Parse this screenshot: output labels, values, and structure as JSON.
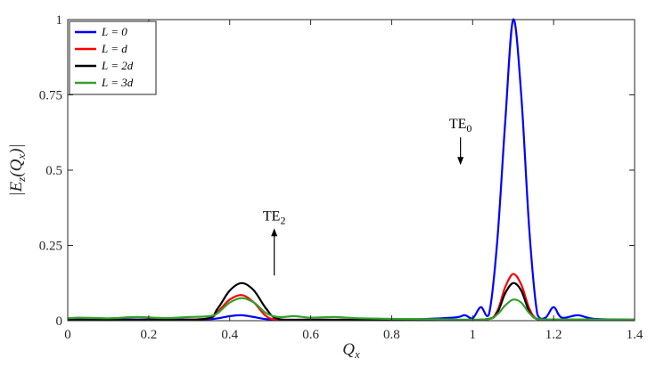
{
  "chart_data": {
    "type": "line",
    "xlabel": "Q_x",
    "ylabel": "|E_z(Q_x)|",
    "xlim": [
      0,
      1.4
    ],
    "ylim": [
      0,
      1
    ],
    "xticks": [
      "0",
      "0.2",
      "0.4",
      "0.6",
      "0.8",
      "1",
      "1.2",
      "1.4"
    ],
    "yticks": [
      "0",
      "0.25",
      "0.5",
      "0.75",
      "1"
    ],
    "grid": false,
    "legend_position": "top-left",
    "series": [
      {
        "name": "L = 0",
        "color": "#0000ff",
        "x": [
          0,
          0.1,
          0.2,
          0.3,
          0.36,
          0.4,
          0.43,
          0.46,
          0.5,
          0.6,
          0.8,
          0.95,
          0.98,
          1.0,
          1.02,
          1.04,
          1.06,
          1.08,
          1.1,
          1.12,
          1.14,
          1.16,
          1.18,
          1.2,
          1.22,
          1.26,
          1.3,
          1.4
        ],
        "values": [
          0.005,
          0.004,
          0.004,
          0.004,
          0.006,
          0.015,
          0.018,
          0.012,
          0.004,
          0.003,
          0.003,
          0.01,
          0.018,
          0.008,
          0.045,
          0.02,
          0.25,
          0.65,
          1.0,
          0.75,
          0.3,
          0.02,
          0.01,
          0.045,
          0.01,
          0.018,
          0.006,
          0.003
        ]
      },
      {
        "name": "L = d",
        "color": "#ff0000",
        "x": [
          0,
          0.2,
          0.34,
          0.37,
          0.4,
          0.43,
          0.46,
          0.49,
          0.52,
          0.6,
          0.9,
          1.03,
          1.06,
          1.08,
          1.1,
          1.12,
          1.14,
          1.16,
          1.2,
          1.4
        ],
        "values": [
          0.003,
          0.003,
          0.006,
          0.03,
          0.07,
          0.085,
          0.06,
          0.015,
          0.004,
          0.003,
          0.003,
          0.004,
          0.03,
          0.11,
          0.155,
          0.12,
          0.04,
          0.005,
          0.003,
          0.003
        ]
      },
      {
        "name": "L = 2d",
        "color": "#000000",
        "x": [
          0,
          0.2,
          0.34,
          0.37,
          0.4,
          0.43,
          0.46,
          0.49,
          0.52,
          0.6,
          0.9,
          1.03,
          1.06,
          1.08,
          1.1,
          1.12,
          1.14,
          1.16,
          1.2,
          1.4
        ],
        "values": [
          0.003,
          0.003,
          0.006,
          0.04,
          0.1,
          0.125,
          0.1,
          0.04,
          0.006,
          0.003,
          0.003,
          0.004,
          0.025,
          0.09,
          0.125,
          0.1,
          0.03,
          0.005,
          0.003,
          0.003
        ]
      },
      {
        "name": "L = 3d",
        "color": "#33a02c",
        "x": [
          0,
          0.03,
          0.1,
          0.17,
          0.24,
          0.3,
          0.35,
          0.37,
          0.4,
          0.43,
          0.46,
          0.49,
          0.52,
          0.56,
          0.6,
          0.66,
          0.72,
          0.8,
          0.9,
          1.03,
          1.06,
          1.08,
          1.1,
          1.12,
          1.14,
          1.16,
          1.2,
          1.28,
          1.4
        ],
        "values": [
          0.008,
          0.01,
          0.008,
          0.012,
          0.009,
          0.012,
          0.015,
          0.025,
          0.06,
          0.075,
          0.06,
          0.025,
          0.012,
          0.015,
          0.01,
          0.012,
          0.008,
          0.006,
          0.005,
          0.004,
          0.02,
          0.05,
          0.07,
          0.06,
          0.025,
          0.006,
          0.004,
          0.004,
          0.003
        ]
      }
    ],
    "annotations": [
      {
        "label": "TE",
        "subscript": "0",
        "arrow": "down",
        "x": 0.97,
        "y": 0.52
      },
      {
        "label": "TE",
        "subscript": "2",
        "arrow": "up",
        "x": 0.51,
        "y": 0.15
      }
    ]
  }
}
